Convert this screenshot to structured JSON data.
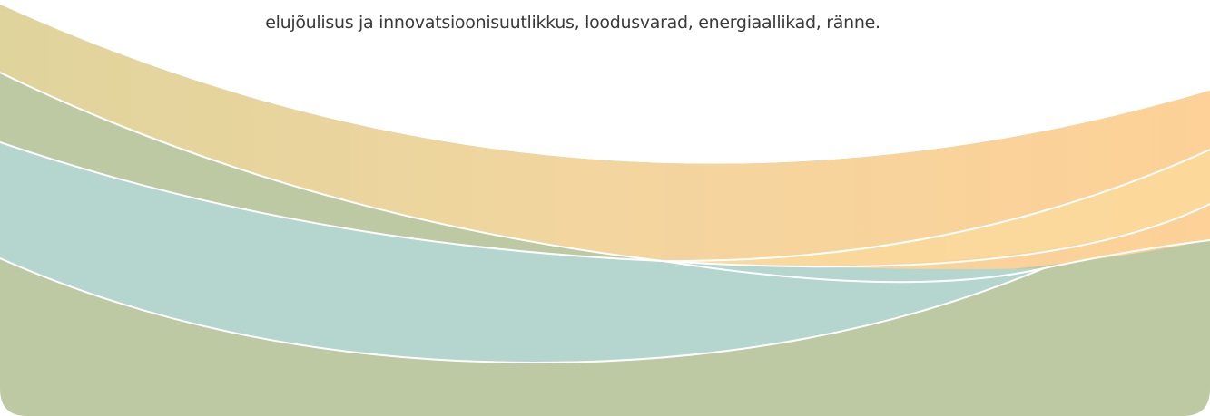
{
  "caption": "elujõulisus ja innovatsioonisuutlikkus, loodusvarad, energiaallikad, ränne."
}
